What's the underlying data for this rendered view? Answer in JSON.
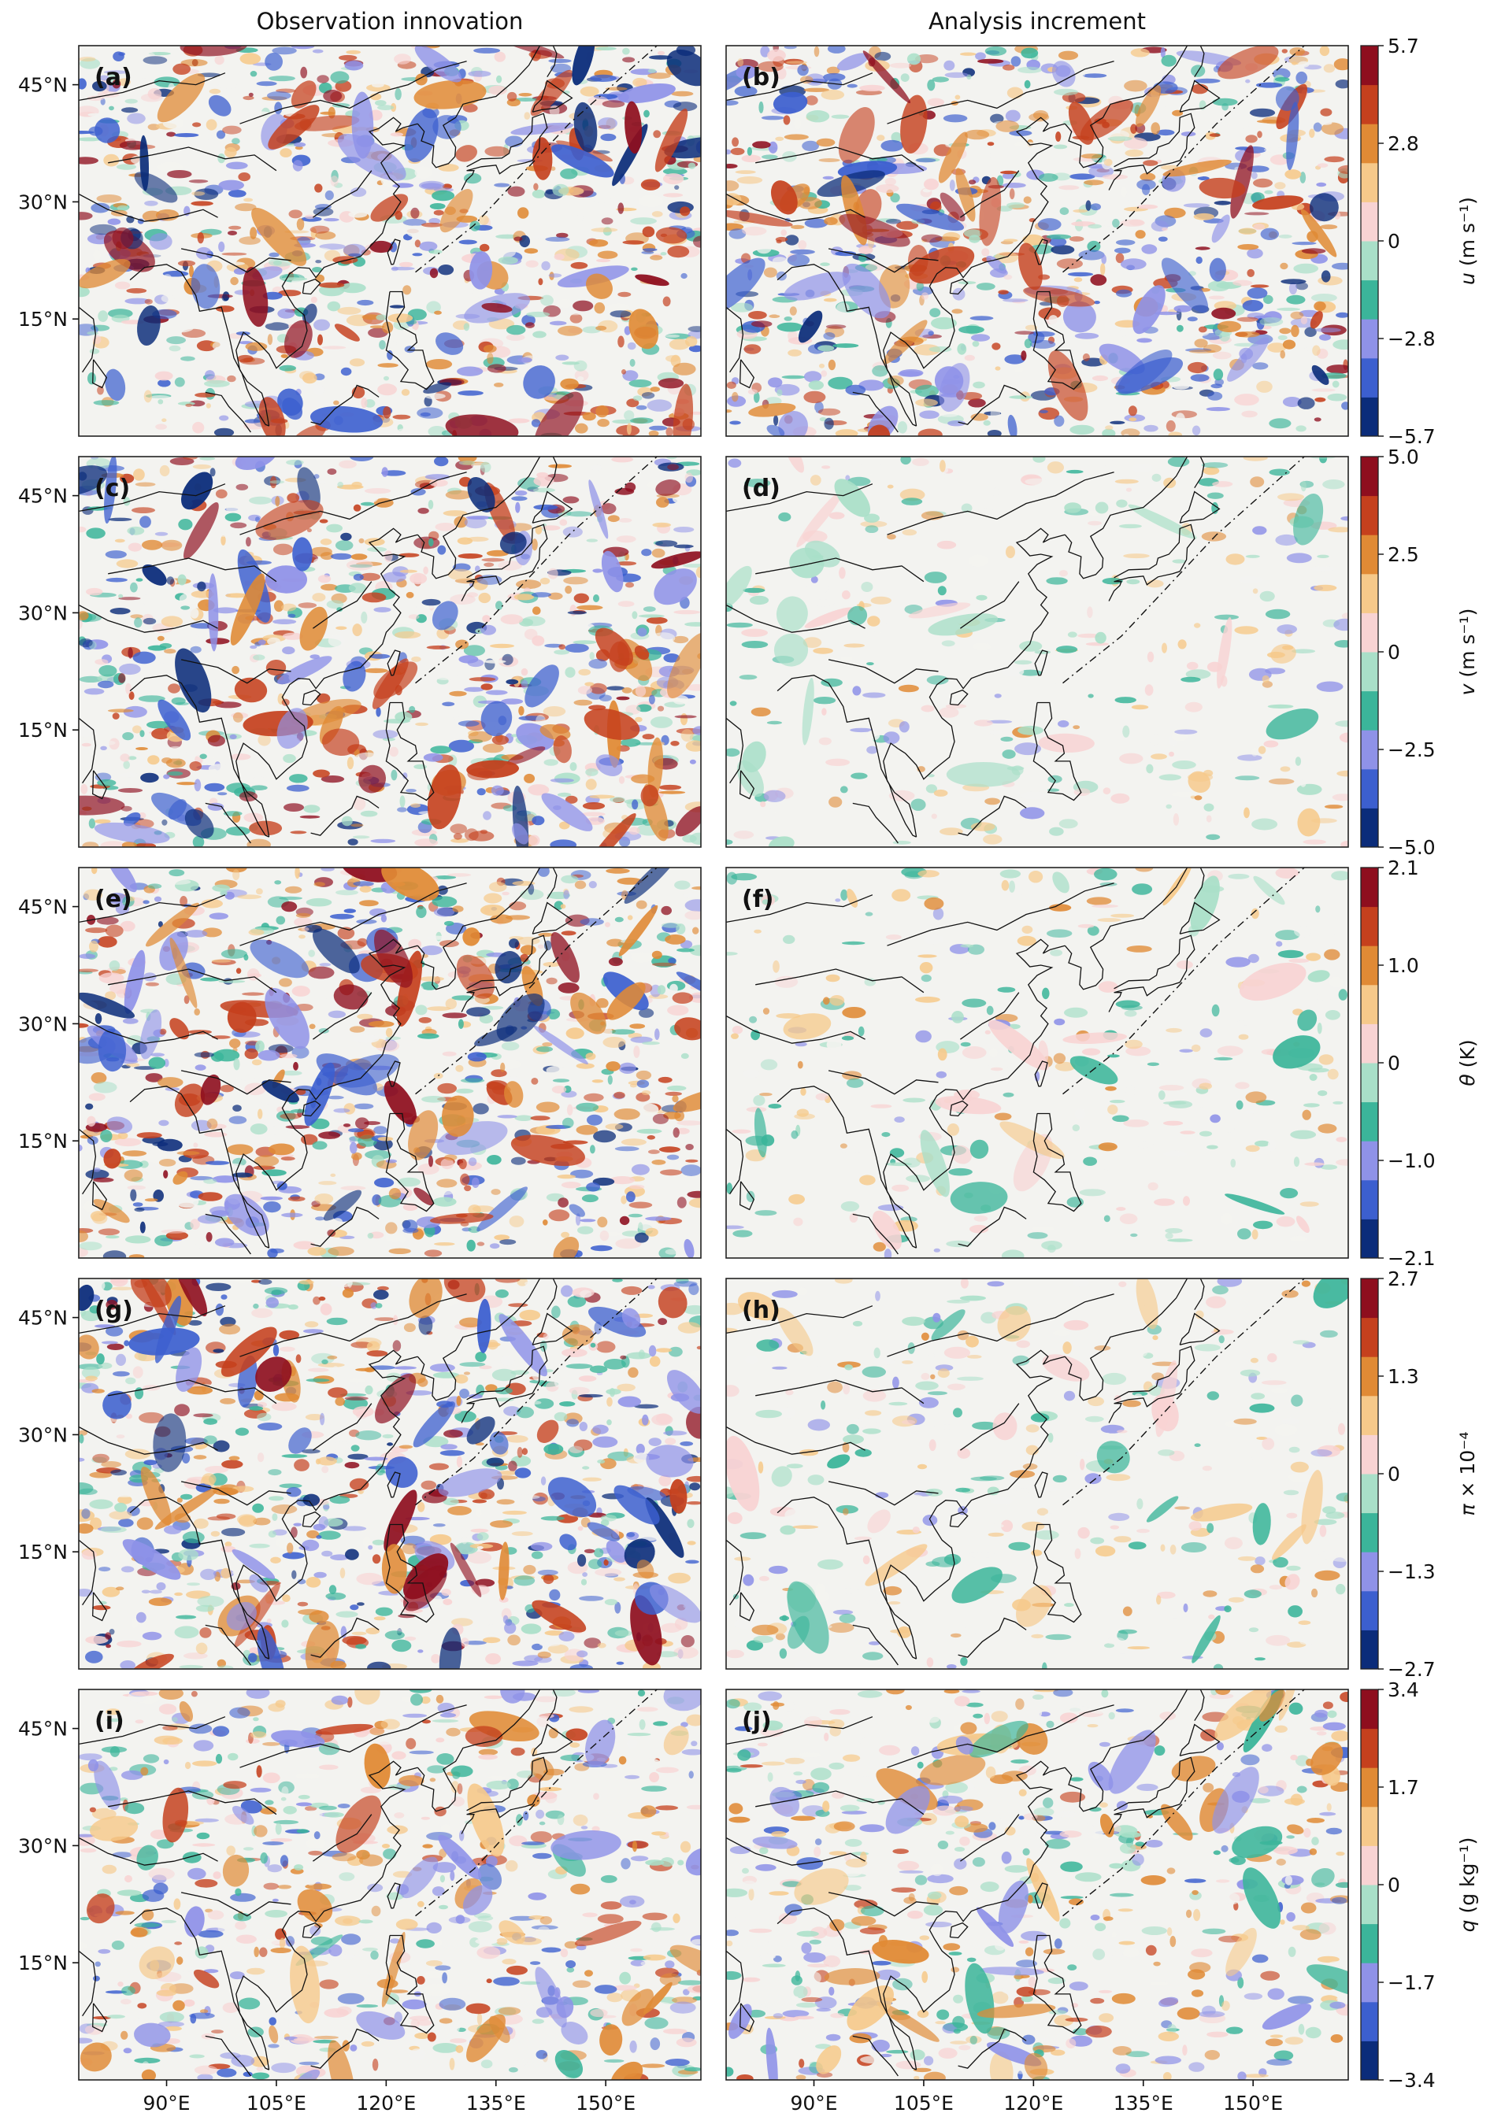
{
  "column_titles": [
    "Observation innovation",
    "Analysis increment"
  ],
  "lat_ticks": [
    "45°N",
    "30°N",
    "15°N"
  ],
  "lon_ticks": [
    "90°E",
    "105°E",
    "120°E",
    "135°E",
    "150°E"
  ],
  "rows": [
    {
      "panels": [
        "(a)",
        "(b)"
      ],
      "colorbar": {
        "label_var": "u",
        "label_unit": "(m s⁻¹)",
        "ticks": [
          "5.7",
          "2.8",
          "0",
          "−2.8",
          "−5.7"
        ]
      },
      "intensity": [
        1.0,
        1.0
      ]
    },
    {
      "panels": [
        "(c)",
        "(d)"
      ],
      "colorbar": {
        "label_var": "v",
        "label_unit": "(m s⁻¹)",
        "ticks": [
          "5.0",
          "2.5",
          "0",
          "−2.5",
          "−5.0"
        ]
      },
      "intensity": [
        1.0,
        0.35
      ]
    },
    {
      "panels": [
        "(e)",
        "(f)"
      ],
      "colorbar": {
        "label_var": "θ",
        "label_unit": "(K)",
        "ticks": [
          "2.1",
          "1.0",
          "0",
          "−1.0",
          "−2.1"
        ]
      },
      "intensity": [
        1.0,
        0.35
      ]
    },
    {
      "panels": [
        "(g)",
        "(h)"
      ],
      "colorbar": {
        "label_var": "π",
        "label_unit": "× 10⁻⁴",
        "ticks": [
          "2.7",
          "1.3",
          "0",
          "−1.3",
          "−2.7"
        ]
      },
      "intensity": [
        1.0,
        0.4
      ]
    },
    {
      "panels": [
        "(i)",
        "(j)"
      ],
      "colorbar": {
        "label_var": "q",
        "label_unit": "(g kg⁻¹)",
        "ticks": [
          "3.4",
          "1.7",
          "0",
          "−1.7",
          "−3.4"
        ]
      },
      "intensity": [
        0.8,
        0.7
      ]
    }
  ],
  "colormap": [
    "#0b2c7a",
    "#3c5fcf",
    "#8f92e8",
    "#3bb59a",
    "#a9dfc8",
    "#f3f3f0",
    "#f8d3d3",
    "#f6c98a",
    "#e08a35",
    "#c5401d",
    "#8e0e1e"
  ]
}
